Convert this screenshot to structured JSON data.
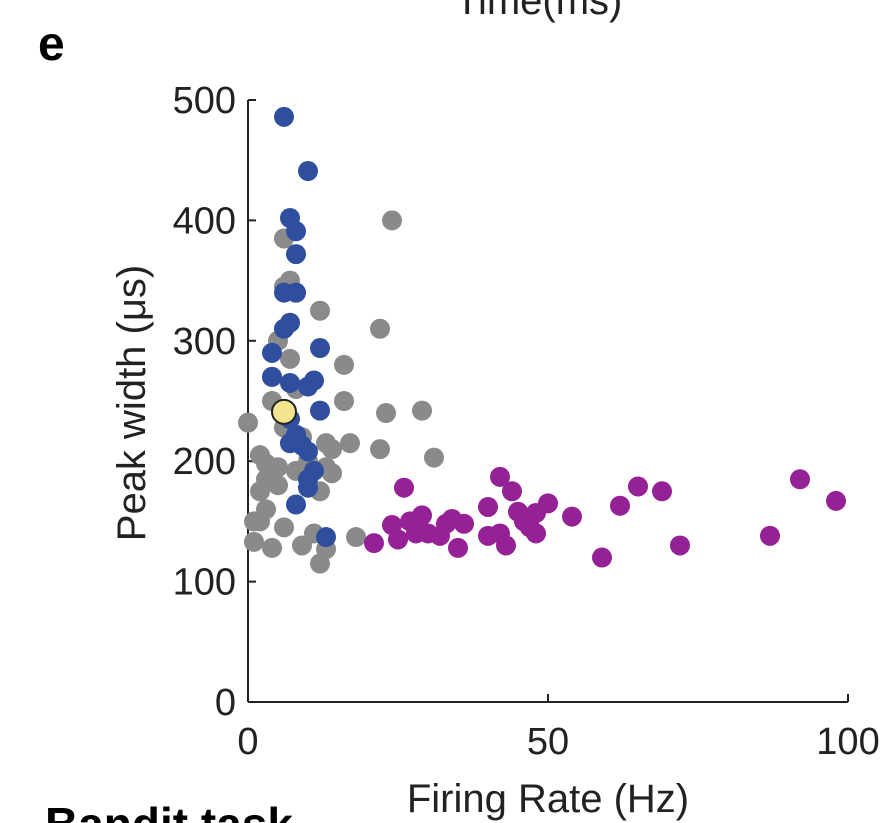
{
  "panel_letter": "e",
  "top_cut_text": "Time(ms)",
  "bottom_cut_text": "Bandit task",
  "colors": {
    "gray": "#8a8a8a",
    "blue": "#2f4f9e",
    "purple": "#952196",
    "highlight": "#f3e48e",
    "axis": "#222222"
  },
  "chart_data": {
    "type": "scatter",
    "xlabel": "Firing Rate (Hz)",
    "ylabel": "Peak width (μs)",
    "xlim": [
      0,
      100
    ],
    "ylim": [
      0,
      500
    ],
    "xticks": [
      0,
      50,
      100
    ],
    "yticks": [
      0,
      100,
      200,
      300,
      400,
      500
    ],
    "xtick_labels": [
      "0",
      "50",
      "100"
    ],
    "ytick_labels": [
      "0",
      "100",
      "200",
      "300",
      "400",
      "500"
    ],
    "grid": false,
    "series": [
      {
        "color": "#8a8a8a",
        "points": [
          [
            0,
            232
          ],
          [
            2,
            205
          ],
          [
            2,
            175
          ],
          [
            3,
            160
          ],
          [
            2,
            150
          ],
          [
            1,
            133
          ],
          [
            4,
            128
          ],
          [
            3,
            185
          ],
          [
            5,
            180
          ],
          [
            5,
            195
          ],
          [
            6,
            145
          ],
          [
            6,
            228
          ],
          [
            4,
            250
          ],
          [
            4,
            270
          ],
          [
            5,
            300
          ],
          [
            6,
            385
          ],
          [
            6,
            345
          ],
          [
            7,
            350
          ],
          [
            8,
            340
          ],
          [
            7,
            285
          ],
          [
            8,
            260
          ],
          [
            7,
            215
          ],
          [
            9,
            220
          ],
          [
            8,
            192
          ],
          [
            10,
            200
          ],
          [
            9,
            130
          ],
          [
            11,
            140
          ],
          [
            12,
            115
          ],
          [
            12,
            175
          ],
          [
            13,
            195
          ],
          [
            13,
            215
          ],
          [
            14,
            210
          ],
          [
            14,
            190
          ],
          [
            12,
            325
          ],
          [
            16,
            280
          ],
          [
            16,
            250
          ],
          [
            17,
            215
          ],
          [
            22,
            310
          ],
          [
            22,
            210
          ],
          [
            23,
            240
          ],
          [
            24,
            400
          ],
          [
            29,
            242
          ],
          [
            31,
            203
          ],
          [
            18,
            137
          ],
          [
            13,
            127
          ],
          [
            3,
            198
          ],
          [
            1,
            150
          ]
        ]
      },
      {
        "color": "#2f4f9e",
        "points": [
          [
            6,
            486
          ],
          [
            10,
            441
          ],
          [
            7,
            402
          ],
          [
            8,
            391
          ],
          [
            8,
            372
          ],
          [
            6,
            340
          ],
          [
            8,
            340
          ],
          [
            7,
            315
          ],
          [
            6,
            310
          ],
          [
            4,
            290
          ],
          [
            12,
            294
          ],
          [
            4,
            270
          ],
          [
            7,
            265
          ],
          [
            11,
            267
          ],
          [
            10,
            262
          ],
          [
            12,
            242
          ],
          [
            7,
            235
          ],
          [
            7,
            215
          ],
          [
            8,
            222
          ],
          [
            9,
            213
          ],
          [
            10,
            208
          ],
          [
            10,
            185
          ],
          [
            11,
            192
          ],
          [
            8,
            164
          ],
          [
            10,
            178
          ],
          [
            13,
            137
          ]
        ]
      },
      {
        "color": "#952196",
        "points": [
          [
            21,
            132
          ],
          [
            24,
            147
          ],
          [
            26,
            178
          ],
          [
            25,
            135
          ],
          [
            27,
            150
          ],
          [
            28,
            140
          ],
          [
            29,
            155
          ],
          [
            30,
            140
          ],
          [
            32,
            138
          ],
          [
            33,
            148
          ],
          [
            34,
            152
          ],
          [
            35,
            128
          ],
          [
            36,
            148
          ],
          [
            40,
            162
          ],
          [
            40,
            138
          ],
          [
            42,
            140
          ],
          [
            42,
            187
          ],
          [
            43,
            130
          ],
          [
            44,
            175
          ],
          [
            45,
            158
          ],
          [
            46,
            150
          ],
          [
            47,
            145
          ],
          [
            48,
            140
          ],
          [
            48,
            157
          ],
          [
            50,
            165
          ],
          [
            54,
            154
          ],
          [
            59,
            120
          ],
          [
            62,
            163
          ],
          [
            65,
            179
          ],
          [
            69,
            175
          ],
          [
            72,
            130
          ],
          [
            87,
            138
          ],
          [
            92,
            185
          ],
          [
            98,
            167
          ]
        ]
      },
      {
        "color": "#f3e48e",
        "points": [
          [
            6,
            241
          ]
        ]
      }
    ]
  }
}
